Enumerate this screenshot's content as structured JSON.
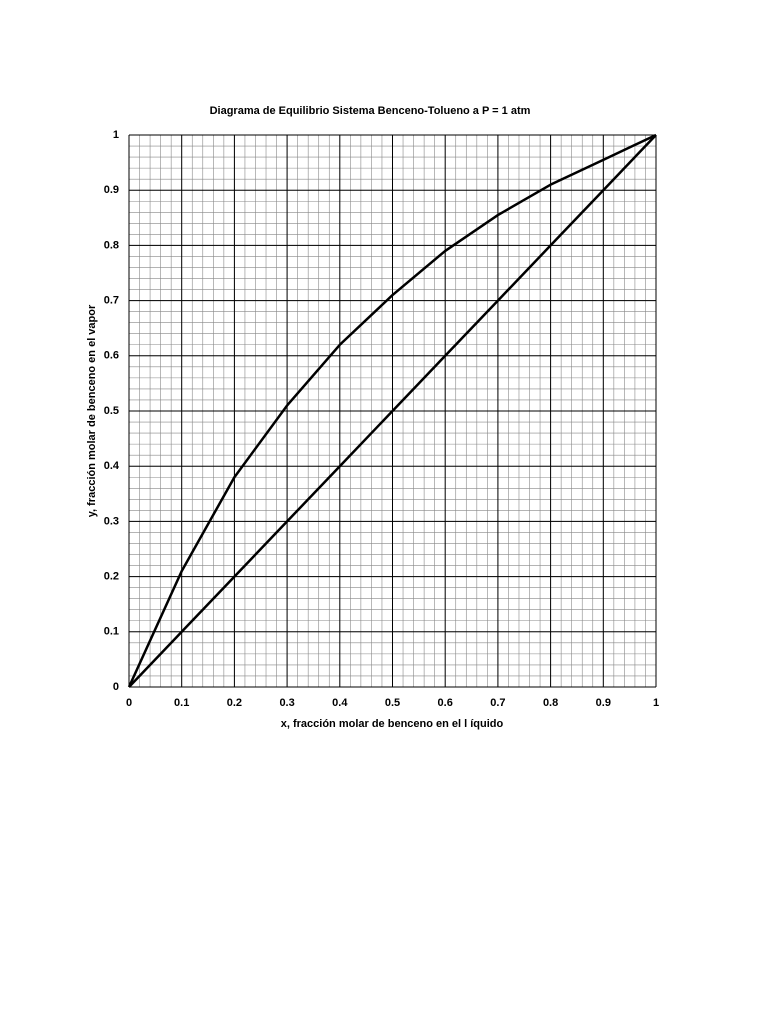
{
  "chart_data": {
    "type": "line",
    "title": "Diagrama de Equilibrio Sistema Benceno-Tolueno a P = 1 atm",
    "x_label": "x, fracción molar de benceno en el l íquido",
    "y_label": "y, fracción  molar de benceno en el vapor",
    "x": [
      0,
      0.1,
      0.2,
      0.3,
      0.4,
      0.5,
      0.6,
      0.7,
      0.8,
      0.9,
      1
    ],
    "series": [
      {
        "color": "#000000",
        "values": [
          0,
          0.21,
          0.38,
          0.51,
          0.62,
          0.71,
          0.79,
          0.855,
          0.91,
          0.955,
          1
        ]
      },
      {
        "color": "#000000",
        "values": [
          0,
          0.1,
          0.2,
          0.3,
          0.4,
          0.5,
          0.6,
          0.7,
          0.8,
          0.9,
          1
        ]
      }
    ],
    "xlim": [
      0,
      1
    ],
    "ylim": [
      0,
      1
    ],
    "xticks": [
      0,
      0.1,
      0.2,
      0.3,
      0.4,
      0.5,
      0.6,
      0.7,
      0.8,
      0.9,
      1
    ],
    "yticks": [
      0,
      0.1,
      0.2,
      0.3,
      0.4,
      0.5,
      0.6,
      0.7,
      0.8,
      0.9,
      1
    ],
    "grid": true,
    "minor_divisions": 5
  }
}
